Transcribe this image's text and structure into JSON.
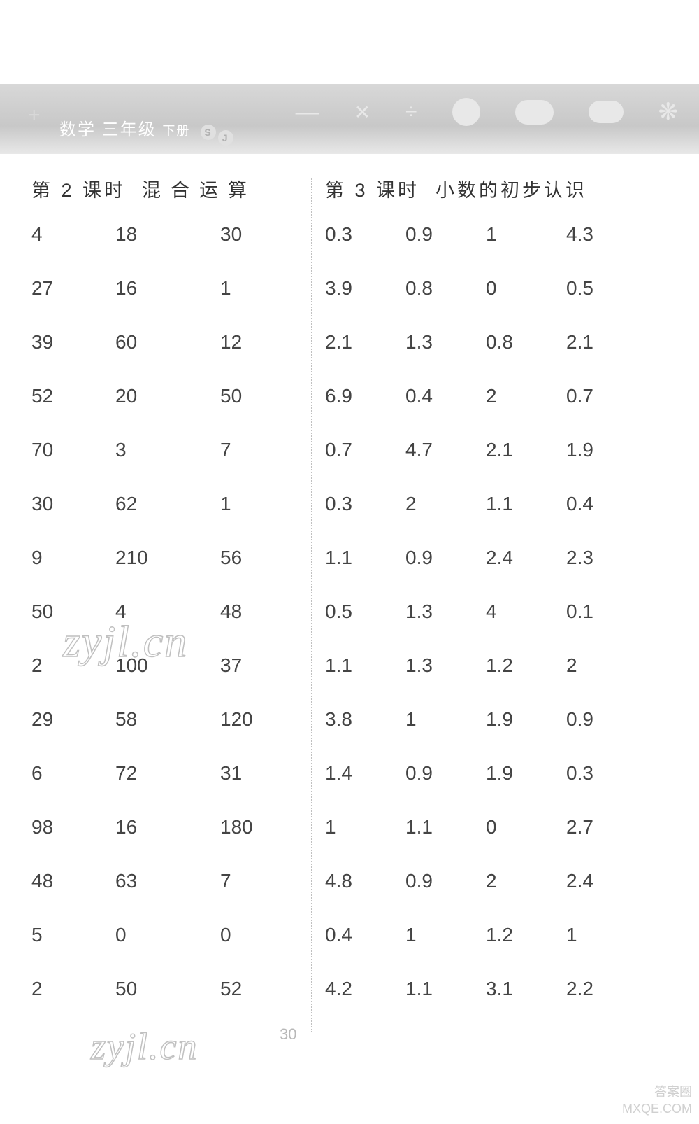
{
  "header": {
    "subject": "数学",
    "grade": "三年级",
    "volume": "下册",
    "badge1": "S",
    "badge2": "J"
  },
  "leftSection": {
    "title_prefix": "第 2 课时",
    "title_main": "混合运算",
    "rows": [
      [
        "4",
        "18",
        "30"
      ],
      [
        "27",
        "16",
        "1"
      ],
      [
        "39",
        "60",
        "12"
      ],
      [
        "52",
        "20",
        "50"
      ],
      [
        "70",
        "3",
        "7"
      ],
      [
        "30",
        "62",
        "1"
      ],
      [
        "9",
        "210",
        "56"
      ],
      [
        "50",
        "4",
        "48"
      ],
      [
        "2",
        "100",
        "37"
      ],
      [
        "29",
        "58",
        "120"
      ],
      [
        "6",
        "72",
        "31"
      ],
      [
        "98",
        "16",
        "180"
      ],
      [
        "48",
        "63",
        "7"
      ],
      [
        "5",
        "0",
        "0"
      ],
      [
        "2",
        "50",
        "52"
      ]
    ]
  },
  "rightSection": {
    "title_prefix": "第 3 课时",
    "title_main": "小数的初步认识",
    "rows": [
      [
        "0.3",
        "0.9",
        "1",
        "4.3"
      ],
      [
        "3.9",
        "0.8",
        "0",
        "0.5"
      ],
      [
        "2.1",
        "1.3",
        "0.8",
        "2.1"
      ],
      [
        "6.9",
        "0.4",
        "2",
        "0.7"
      ],
      [
        "0.7",
        "4.7",
        "2.1",
        "1.9"
      ],
      [
        "0.3",
        "2",
        "1.1",
        "0.4"
      ],
      [
        "1.1",
        "0.9",
        "2.4",
        "2.3"
      ],
      [
        "0.5",
        "1.3",
        "4",
        "0.1"
      ],
      [
        "1.1",
        "1.3",
        "1.2",
        "2"
      ],
      [
        "3.8",
        "1",
        "1.9",
        "0.9"
      ],
      [
        "1.4",
        "0.9",
        "1.9",
        "0.3"
      ],
      [
        "1",
        "1.1",
        "0",
        "2.7"
      ],
      [
        "4.8",
        "0.9",
        "2",
        "2.4"
      ],
      [
        "0.4",
        "1",
        "1.2",
        "1"
      ],
      [
        "4.2",
        "1.1",
        "3.1",
        "2.2"
      ]
    ]
  },
  "pageNumber": "30",
  "watermark": "zyjl.cn",
  "cornerText1": "答案圈",
  "cornerText2": "MXQE.COM"
}
